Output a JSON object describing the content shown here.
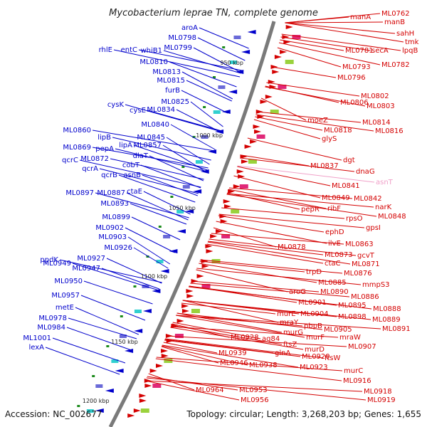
{
  "title": "Mycobacterium leprae TN, complete genome",
  "accession": "Accession: NC_002677",
  "summary": "Topology: circular; Length: 3,268,203 bp; Genes: 1,655",
  "colors": {
    "forward": "#d40000",
    "reverse": "#0000cc",
    "light": "#f0a0c8",
    "backbone": "#7a7a7a"
  },
  "ticks": [
    "950 kbp",
    "1000 kbp",
    "1050 kbp",
    "1100 kbp",
    "1150 kbp",
    "1200 kbp"
  ],
  "left_genes": [
    "aroA",
    "ML0798",
    "ML0799",
    "rhlE",
    "entC",
    "whiB1",
    "ML0810",
    "ML0813",
    "ML0815",
    "furB",
    "ML0825",
    "cysK",
    "cysE",
    "ML0834",
    "ML0840",
    "ML0845",
    "ML0860",
    "lipB",
    "lipA",
    "ML0857",
    "ML0869",
    "pepA",
    "dlaT",
    "qcrC",
    "ML0872",
    "cobT",
    "qcrA",
    "qcrB",
    "asnB",
    "ctaE",
    "ML0897",
    "ML0887",
    "ML0893",
    "ML0899",
    "ML0902",
    "ML0903",
    "ML0926",
    "ppdK",
    "ML0927",
    "ML0949",
    "ML0947",
    "ML0950",
    "ML0957",
    "metE",
    "ML0978",
    "ML0984",
    "ML1001",
    "lexA"
  ],
  "right_genes": [
    "ML0762",
    "manA",
    "manB",
    "sahH",
    "tmk",
    "ML0781",
    "secA",
    "lpqB",
    "ML0793",
    "ML0782",
    "ML0796",
    "ML0802",
    "ML0806",
    "ML0803",
    "moeZ",
    "ML0814",
    "ML0818",
    "ML0816",
    "glyS",
    "dgt",
    "ML0837",
    "dnaG",
    "asnT",
    "ML0841",
    "ML0849",
    "ML0842",
    "narK",
    "pepR",
    "ribF",
    "ML0848",
    "rpsO",
    "gpsI",
    "ephD",
    "ML0878",
    "ilvE",
    "ML0863",
    "ML0873",
    "gcvT",
    "ctaC",
    "ML0871",
    "trpD",
    "ML0876",
    "mmpS3",
    "ML0885",
    "aroG",
    "ML0890",
    "ML0886",
    "ML0901",
    "ML0895",
    "ML0888",
    "murE",
    "ML0904",
    "ML0898",
    "ML0889",
    "mraY",
    "pbpB",
    "ML0891",
    "ML0905",
    "murG",
    "murF",
    "mraW",
    "ML0928",
    "ag84",
    "ftsZ",
    "murD",
    "ML0907",
    "glnA",
    "ML0920",
    "ftsW",
    "ML0923",
    "ML0939",
    "murC",
    "ML0946",
    "ML0938",
    "ML0916",
    "ML0918",
    "ML0953",
    "ML0964",
    "ML0956",
    "ML0919"
  ]
}
